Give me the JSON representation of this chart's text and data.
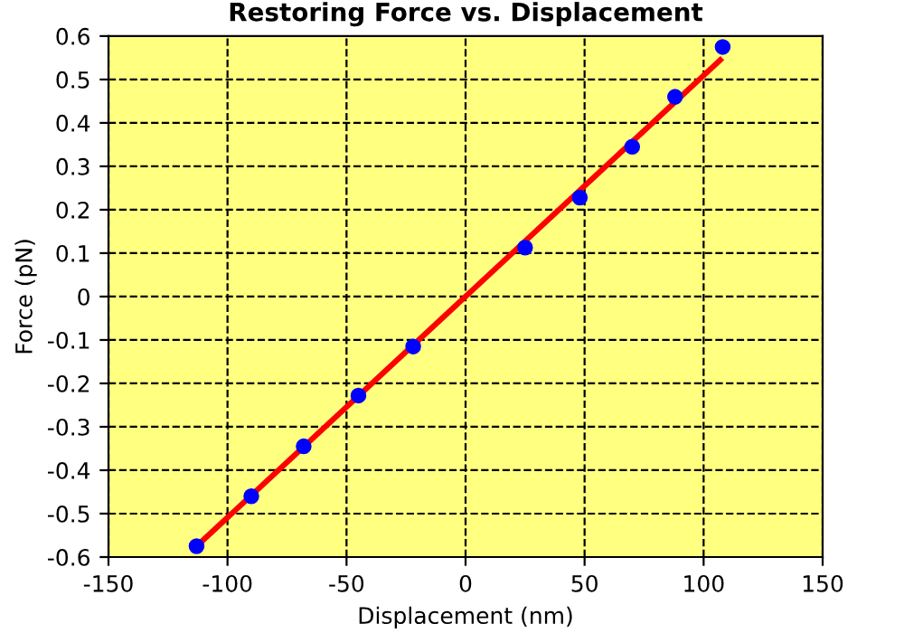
{
  "chart_data": {
    "type": "scatter",
    "title": "Restoring Force vs. Displacement",
    "xlabel": "Displacement (nm)",
    "ylabel": "Force (pN)",
    "series": [
      {
        "color": "#0000ff",
        "marker": "circle",
        "x": [
          -113,
          -90,
          -68,
          -45,
          -22,
          25,
          48,
          70,
          88,
          108
        ],
        "values": [
          -0.575,
          -0.46,
          -0.345,
          -0.228,
          -0.115,
          0.113,
          0.228,
          0.345,
          0.46,
          0.575
        ]
      },
      {
        "type": "line",
        "color": "#ff0000",
        "marker": "none",
        "line_style": "solid",
        "x": [
          -112,
          107
        ],
        "values": [
          -0.57,
          0.545
        ]
      }
    ],
    "xlim": [
      -150,
      150
    ],
    "xticks": [
      -150,
      -100,
      -50,
      0,
      50,
      100,
      150
    ],
    "ylim": [
      -0.6,
      0.6
    ],
    "yticks": [
      -0.6,
      -0.5,
      -0.4,
      -0.3,
      -0.2,
      -0.1,
      0,
      0.1,
      0.2,
      0.3,
      0.4,
      0.5,
      0.6
    ],
    "grid": true
  }
}
